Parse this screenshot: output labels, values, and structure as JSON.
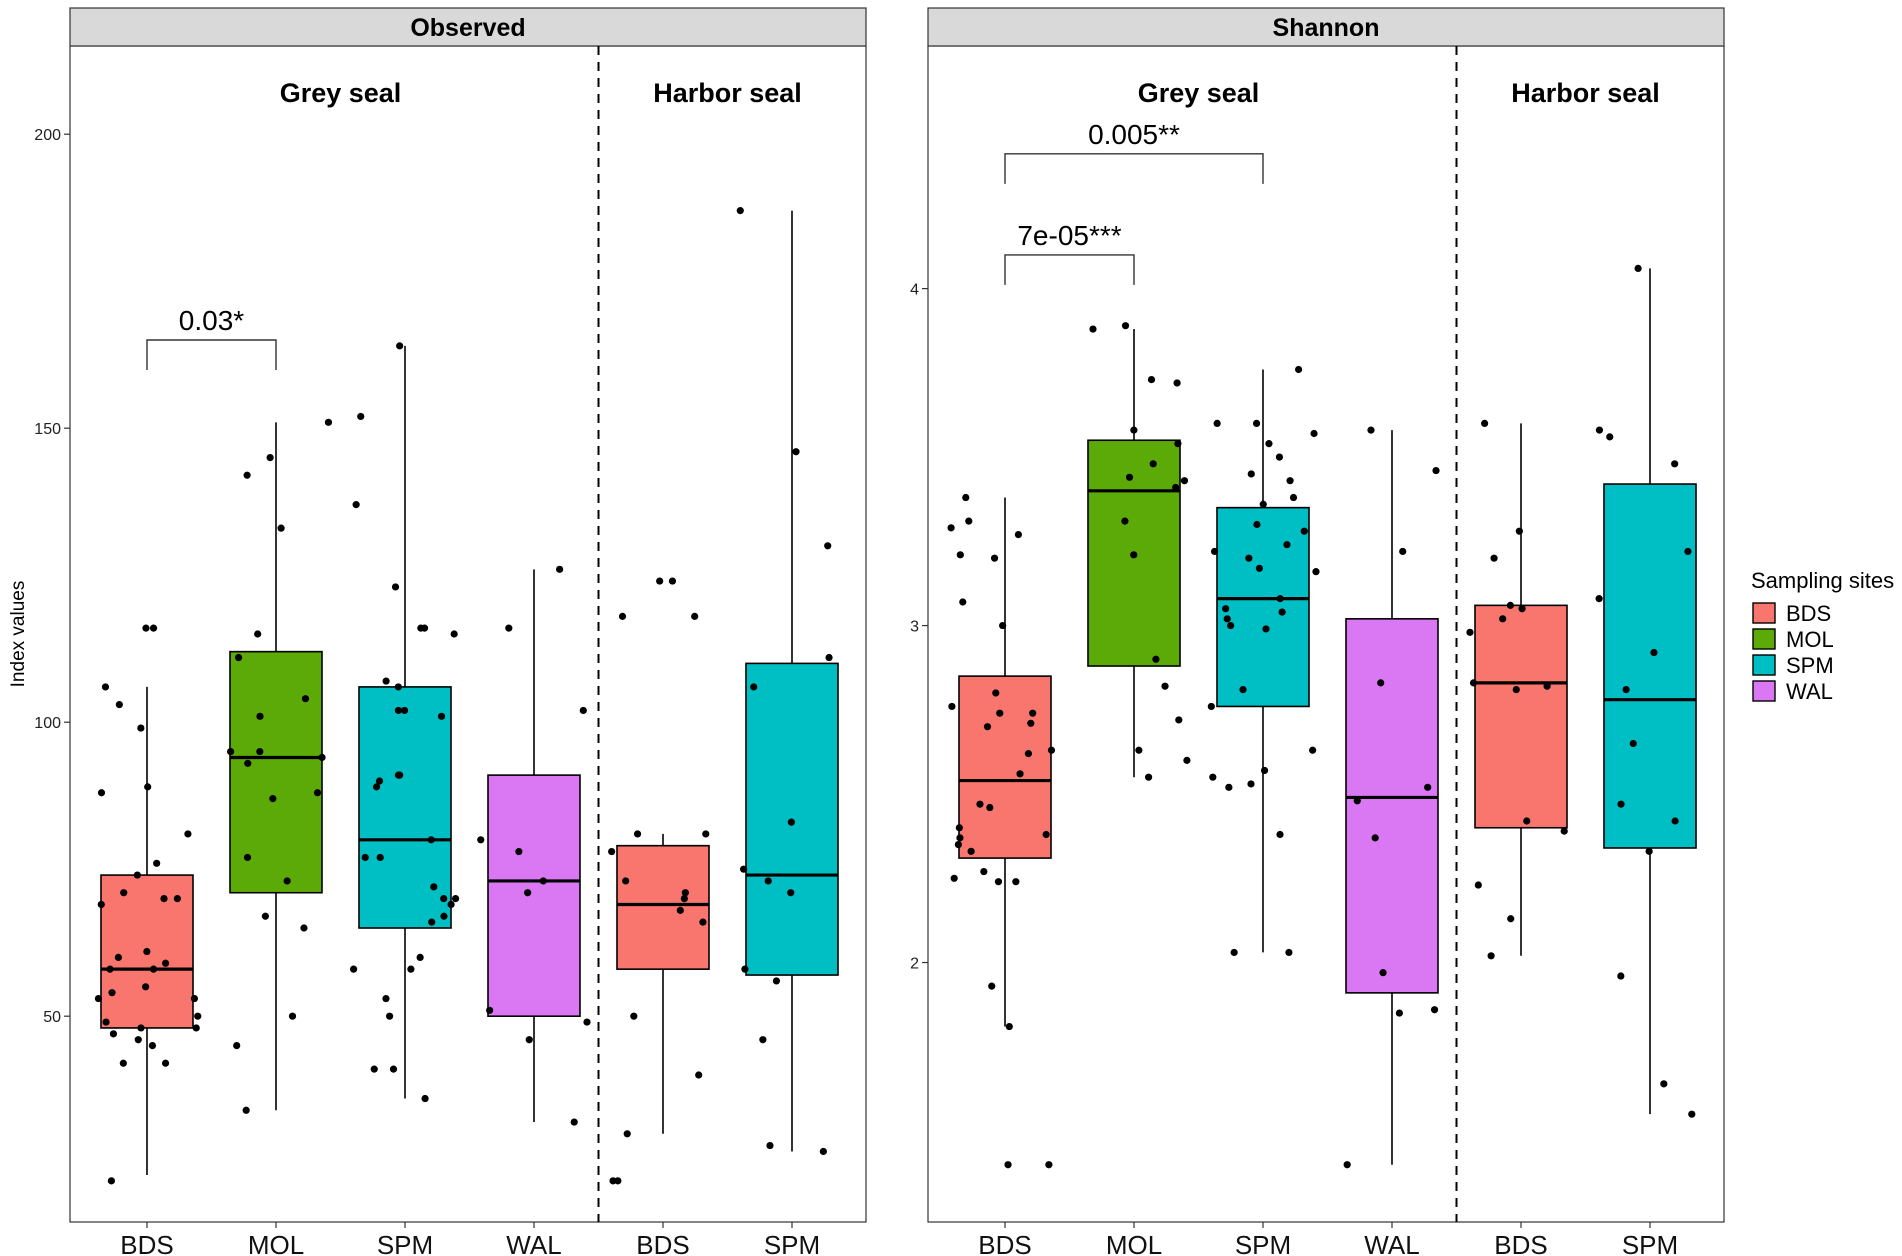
{
  "chart_data": {
    "type": "box",
    "y_axis_label": "Index values",
    "legend": {
      "title": "Sampling sites",
      "position": "right",
      "entries": [
        {
          "label": "BDS",
          "color": "#F8766D"
        },
        {
          "label": "MOL",
          "color": "#5BAA08"
        },
        {
          "label": "SPM",
          "color": "#00BFC4"
        },
        {
          "label": "WAL",
          "color": "#DA78F4"
        }
      ]
    },
    "panels": [
      {
        "title": "Observed",
        "ylim": [
          15,
          215
        ],
        "yticks": [
          50,
          100,
          150,
          200
        ],
        "groups": [
          {
            "label": "Grey seal",
            "categories": [
              "BDS",
              "MOL",
              "SPM",
              "WAL"
            ]
          },
          {
            "label": "Harbor seal",
            "categories": [
              "BDS",
              "SPM"
            ]
          }
        ],
        "boxes": [
          {
            "category": "BDS",
            "site": "BDS",
            "min": 23,
            "q1": 48,
            "median": 58,
            "q3": 74,
            "max": 106,
            "points": [
              116,
              116,
              106,
              103,
              99,
              89,
              88,
              81,
              76,
              74,
              71,
              70,
              70,
              69,
              61,
              60,
              59,
              58,
              58,
              55,
              54,
              53,
              53,
              50,
              49,
              48,
              48,
              47,
              46,
              45,
              42,
              42,
              22
            ]
          },
          {
            "category": "MOL",
            "site": "MOL",
            "min": 34,
            "q1": 71,
            "median": 94,
            "q3": 112,
            "max": 151,
            "points": [
              151,
              145,
              142,
              133,
              115,
              111,
              104,
              101,
              95,
              95,
              94,
              93,
              88,
              87,
              77,
              73,
              67,
              65,
              50,
              45,
              34
            ]
          },
          {
            "category": "SPM",
            "site": "SPM",
            "min": 36,
            "q1": 65,
            "median": 80,
            "q3": 106,
            "max": 164,
            "points": [
              164,
              152,
              137,
              123,
              116,
              116,
              115,
              107,
              106,
              102,
              102,
              101,
              91,
              91,
              90,
              89,
              80,
              77,
              77,
              72,
              70,
              70,
              69,
              67,
              66,
              60,
              58,
              58,
              53,
              50,
              41,
              41,
              36
            ]
          },
          {
            "category": "WAL",
            "site": "WAL",
            "min": 32,
            "q1": 50,
            "median": 73,
            "q3": 91,
            "max": 126,
            "points": [
              126,
              116,
              102,
              80,
              78,
              73,
              71,
              51,
              49,
              46,
              32
            ]
          },
          {
            "category": "BDS",
            "site": "BDS",
            "min": 30,
            "q1": 58,
            "median": 69,
            "q3": 79,
            "max": 81,
            "points": [
              124,
              124,
              118,
              118,
              81,
              81,
              78,
              73,
              71,
              70,
              68,
              66,
              50,
              40,
              30,
              22,
              22
            ]
          },
          {
            "category": "SPM",
            "site": "SPM",
            "min": 27,
            "q1": 57,
            "median": 74,
            "q3": 110,
            "max": 187,
            "points": [
              187,
              146,
              130,
              111,
              106,
              83,
              75,
              73,
              71,
              58,
              56,
              46,
              28,
              27
            ]
          }
        ],
        "annotations": [
          {
            "text": "0.03*",
            "from_box": 0,
            "to_box": 1,
            "level": 165
          }
        ]
      },
      {
        "title": "Shannon",
        "ylim": [
          1.23,
          4.72
        ],
        "yticks": [
          2,
          3,
          4
        ],
        "groups": [
          {
            "label": "Grey seal",
            "categories": [
              "BDS",
              "MOL",
              "SPM",
              "WAL"
            ]
          },
          {
            "label": "Harbor seal",
            "categories": [
              "BDS",
              "SPM"
            ]
          }
        ],
        "boxes": [
          {
            "category": "BDS",
            "site": "BDS",
            "min": 1.81,
            "q1": 2.31,
            "median": 2.54,
            "q3": 2.85,
            "max": 3.38,
            "points": [
              3.38,
              3.31,
              3.29,
              3.27,
              3.21,
              3.2,
              3.07,
              3.0,
              2.8,
              2.76,
              2.74,
              2.74,
              2.71,
              2.7,
              2.63,
              2.62,
              2.56,
              2.47,
              2.46,
              2.4,
              2.38,
              2.37,
              2.35,
              2.33,
              2.27,
              2.25,
              2.24,
              2.24,
              1.93,
              1.81,
              1.4,
              1.4
            ]
          },
          {
            "category": "MOL",
            "site": "MOL",
            "min": 2.55,
            "q1": 2.88,
            "median": 3.4,
            "q3": 3.55,
            "max": 3.88,
            "points": [
              3.89,
              3.88,
              3.72,
              3.73,
              3.58,
              3.54,
              3.48,
              3.44,
              3.43,
              3.41,
              3.31,
              3.21,
              2.9,
              2.82,
              2.72,
              2.63,
              2.6,
              2.55
            ]
          },
          {
            "category": "SPM",
            "site": "SPM",
            "min": 2.03,
            "q1": 2.76,
            "median": 3.08,
            "q3": 3.35,
            "max": 3.76,
            "points": [
              3.76,
              3.6,
              3.6,
              3.57,
              3.54,
              3.5,
              3.45,
              3.43,
              3.38,
              3.36,
              3.3,
              3.28,
              3.24,
              3.22,
              3.2,
              3.17,
              3.16,
              3.08,
              3.05,
              3.04,
              3.02,
              3.0,
              2.99,
              2.81,
              2.76,
              2.63,
              2.57,
              2.55,
              2.53,
              2.52,
              2.38,
              2.03,
              2.03
            ]
          },
          {
            "category": "WAL",
            "site": "WAL",
            "min": 1.4,
            "q1": 1.91,
            "median": 2.49,
            "q3": 3.02,
            "max": 3.58,
            "points": [
              3.58,
              3.46,
              3.22,
              2.83,
              2.52,
              2.48,
              2.37,
              1.97,
              1.86,
              1.85,
              1.4
            ]
          },
          {
            "category": "BDS",
            "site": "BDS",
            "min": 2.02,
            "q1": 2.4,
            "median": 2.83,
            "q3": 3.06,
            "max": 3.6,
            "points": [
              3.6,
              3.28,
              3.2,
              3.06,
              3.05,
              3.02,
              2.98,
              2.83,
              2.82,
              2.81,
              2.42,
              2.39,
              2.23,
              2.13,
              2.02
            ]
          },
          {
            "category": "SPM",
            "site": "SPM",
            "min": 1.55,
            "q1": 2.34,
            "median": 2.78,
            "q3": 3.42,
            "max": 4.06,
            "points": [
              4.06,
              3.58,
              3.56,
              3.48,
              3.22,
              3.08,
              2.92,
              2.81,
              2.65,
              2.47,
              2.42,
              2.33,
              1.96,
              1.64,
              1.55
            ]
          }
        ],
        "annotations": [
          {
            "text": "0.005**",
            "from_box": 0,
            "to_box": 2,
            "level": 4.4
          },
          {
            "text": "7e-05***",
            "from_box": 0,
            "to_box": 1,
            "level": 4.1
          }
        ]
      }
    ]
  }
}
